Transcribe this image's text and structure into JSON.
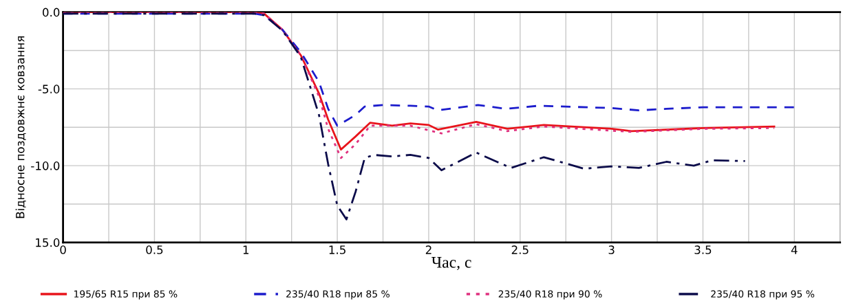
{
  "chart_data": {
    "type": "line",
    "xlabel": "Час, с",
    "ylabel": "Відносне поздовжнє ковзання",
    "xlim": [
      0,
      4.25
    ],
    "ylim": [
      -15,
      0
    ],
    "xticks": [
      0,
      {
        "value": 0.25,
        "label": null
      },
      0.5,
      {
        "value": 0.75,
        "label": null
      },
      1,
      {
        "value": 1.25,
        "label": null
      },
      1.5,
      {
        "value": 1.75,
        "label": null
      },
      2,
      {
        "value": 2.25,
        "label": null
      },
      2.5,
      {
        "value": 2.75,
        "label": null
      },
      3,
      {
        "value": 3.25,
        "label": null
      },
      3.5,
      {
        "value": 3.75,
        "label": null
      },
      4
    ],
    "yticks": [
      {
        "value": 0,
        "label": "0.0"
      },
      {
        "value": -2.5,
        "label": null
      },
      {
        "value": -5,
        "label": "-5.0"
      },
      {
        "value": -7.5,
        "label": null
      },
      {
        "value": -10,
        "label": "-10.0"
      },
      {
        "value": -12.5,
        "label": null
      },
      {
        "value": -15,
        "label": "15.0"
      }
    ],
    "grid": true,
    "legend": "bottom",
    "series": [
      {
        "name": "195/65 R15 при 85 %",
        "color": "#e8141b",
        "line_style": "solid",
        "x": [
          0,
          1.05,
          1.1,
          1.2,
          1.3,
          1.4,
          1.45,
          1.52,
          1.6,
          1.68,
          1.8,
          1.9,
          2.0,
          2.05,
          2.26,
          2.43,
          2.63,
          3.0,
          3.11,
          3.5,
          3.89
        ],
        "values": [
          0,
          0,
          -0.1,
          -1.15,
          -2.8,
          -5.3,
          -7.0,
          -8.95,
          -8.1,
          -7.2,
          -7.4,
          -7.25,
          -7.35,
          -7.65,
          -7.15,
          -7.6,
          -7.35,
          -7.6,
          -7.75,
          -7.55,
          -7.45
        ]
      },
      {
        "name": "235/40 R18 при 85 %",
        "color": "#1c1ccc",
        "line_style": "dashed",
        "x": [
          0,
          1.05,
          1.1,
          1.2,
          1.3,
          1.4,
          1.45,
          1.5,
          1.6,
          1.65,
          1.75,
          1.9,
          2.0,
          2.05,
          2.27,
          2.42,
          2.6,
          3.0,
          3.15,
          3.3,
          3.5,
          4.0
        ],
        "values": [
          -0.1,
          -0.1,
          -0.2,
          -1.15,
          -2.6,
          -4.55,
          -6.3,
          -7.4,
          -6.7,
          -6.15,
          -6.05,
          -6.1,
          -6.15,
          -6.4,
          -6.05,
          -6.3,
          -6.1,
          -6.25,
          -6.4,
          -6.3,
          -6.2,
          -6.2
        ]
      },
      {
        "name": "235/40 R18 при 90 %",
        "color": "#e0307f",
        "line_style": "dotted",
        "x": [
          0,
          1.05,
          1.1,
          1.2,
          1.3,
          1.4,
          1.45,
          1.52,
          1.6,
          1.68,
          1.9,
          2.07,
          2.26,
          2.43,
          2.63,
          3.11,
          3.5,
          3.89
        ],
        "values": [
          0,
          0,
          -0.1,
          -1.15,
          -2.8,
          -5.5,
          -7.6,
          -9.5,
          -8.6,
          -7.4,
          -7.4,
          -7.9,
          -7.3,
          -7.75,
          -7.45,
          -7.8,
          -7.6,
          -7.55
        ]
      },
      {
        "name": "235/40 R18 при 95 %",
        "color": "#0b0b4a",
        "line_style": "dashdot",
        "x": [
          0,
          1.05,
          1.1,
          1.2,
          1.3,
          1.4,
          1.45,
          1.5,
          1.55,
          1.6,
          1.65,
          1.7,
          1.8,
          1.9,
          2.0,
          2.07,
          2.26,
          2.45,
          2.63,
          2.85,
          3.0,
          3.15,
          3.3,
          3.45,
          3.55,
          3.73
        ],
        "values": [
          -0.1,
          -0.1,
          -0.2,
          -1.2,
          -2.9,
          -6.7,
          -9.9,
          -12.6,
          -13.5,
          -11.7,
          -9.5,
          -9.3,
          -9.4,
          -9.3,
          -9.5,
          -10.3,
          -9.15,
          -10.15,
          -9.45,
          -10.2,
          -10.05,
          -10.15,
          -9.75,
          -10.0,
          -9.65,
          -9.7
        ]
      }
    ]
  }
}
